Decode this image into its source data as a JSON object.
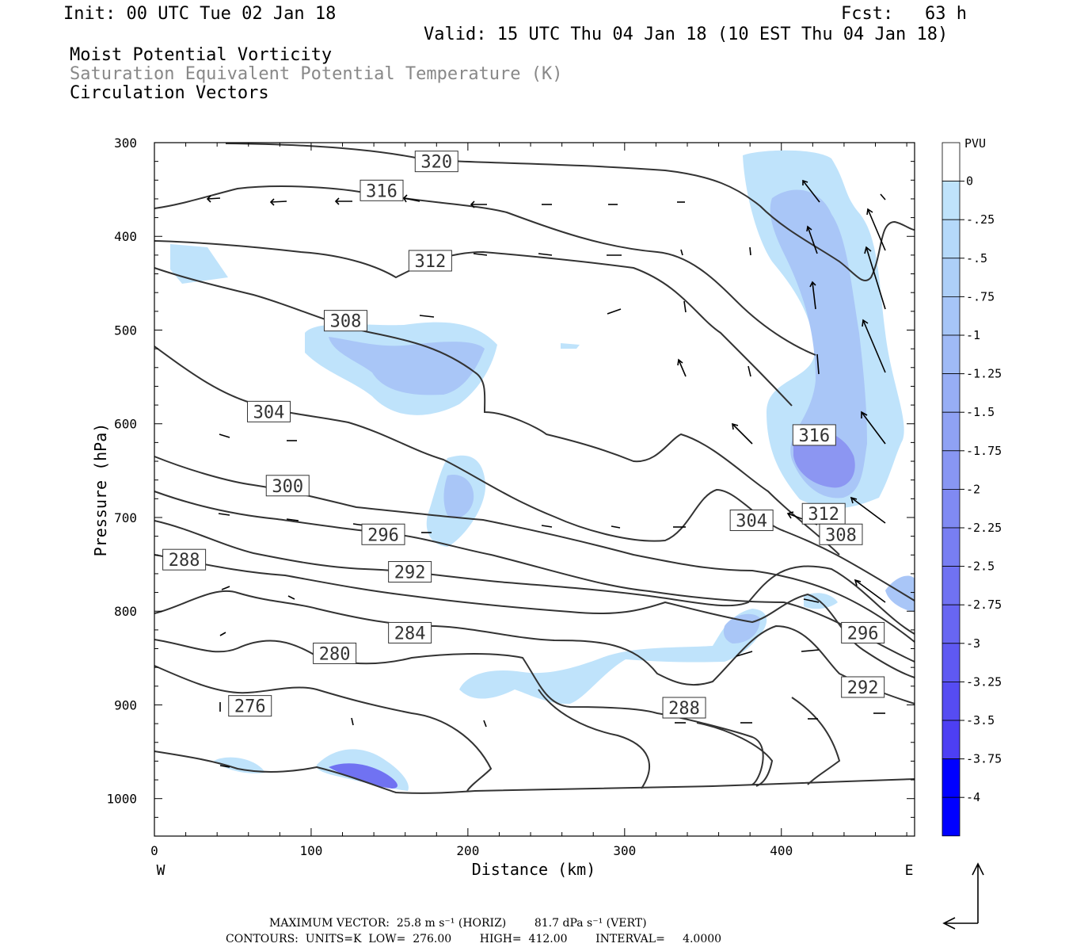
{
  "header": {
    "init": "Init: 00 UTC Tue 02 Jan 18",
    "fcst": "Fcst:   63 h",
    "valid": "Valid: 15 UTC Thu 04 Jan 18 (10 EST Thu 04 Jan 18)",
    "field1": "Moist Potential Vorticity",
    "field2": "Saturation Equivalent Potential Temperature (K)",
    "field3": "Circulation Vectors"
  },
  "footer": {
    "max_vector": "MAXIMUM VECTOR:  25.8 m s⁻¹ (HORIZ)        81.7 dPa s⁻¹ (VERT)",
    "contours": "CONTOURS:  UNITS=K  LOW=  276.00        HIGH=  412.00        INTERVAL=     4.0000"
  },
  "colors": {
    "mpv_light": "#bfe3fb",
    "mpv_mid": "#a9c6f7",
    "mpv_strong": "#8c96f2",
    "mpv_deep": "#4a4ff0",
    "contour": "#333333"
  },
  "chart_data": {
    "type": "cross-section",
    "xlabel": "Distance (km)",
    "ylabel": "Pressure (hPa)",
    "xlim": [
      0,
      485
    ],
    "ylim": [
      1040,
      300
    ],
    "x_ticks": [
      "0",
      "100",
      "200",
      "300",
      "400"
    ],
    "y_ticks": [
      "300",
      "400",
      "500",
      "600",
      "700",
      "800",
      "900",
      "1000"
    ],
    "x_end_labels": {
      "left": "W",
      "right": "E"
    },
    "colorbar": {
      "unit": "PVU",
      "labels": [
        "0",
        "-.25",
        "-.5",
        "-.75",
        "-1",
        "-1.25",
        "-1.5",
        "-1.75",
        "-2",
        "-2.25",
        "-2.5",
        "-2.75",
        "-3",
        "-3.25",
        "-3.5",
        "-3.75",
        "-4"
      ],
      "colors": [
        "#ffffff",
        "#bfe3fb",
        "#b5d9fa",
        "#adcff8",
        "#a6c5f7",
        "#9fbaf6",
        "#97aef5",
        "#8fa2f4",
        "#8896f3",
        "#808af3",
        "#787ef2",
        "#7072f2",
        "#6866f2",
        "#5f59f2",
        "#564cf2",
        "#4d3ff3",
        "#0000ff"
      ]
    },
    "contour_labels": [
      {
        "label": "320",
        "x": 180,
        "p": 320
      },
      {
        "label": "316",
        "x": 145,
        "p": 351
      },
      {
        "label": "312",
        "x": 176,
        "p": 426
      },
      {
        "label": "308",
        "x": 122,
        "p": 490
      },
      {
        "label": "304",
        "x": 73,
        "p": 587
      },
      {
        "label": "300",
        "x": 85,
        "p": 666
      },
      {
        "label": "296",
        "x": 146,
        "p": 718
      },
      {
        "label": "292",
        "x": 163,
        "p": 758
      },
      {
        "label": "288",
        "x": 19,
        "p": 745
      },
      {
        "label": "284",
        "x": 163,
        "p": 823
      },
      {
        "label": "280",
        "x": 115,
        "p": 845
      },
      {
        "label": "276",
        "x": 61,
        "p": 901
      },
      {
        "label": "316",
        "x": 421,
        "p": 612
      },
      {
        "label": "312",
        "x": 427,
        "p": 696
      },
      {
        "label": "304",
        "x": 381,
        "p": 703
      },
      {
        "label": "308",
        "x": 438,
        "p": 718
      },
      {
        "label": "296",
        "x": 452,
        "p": 823
      },
      {
        "label": "292",
        "x": 452,
        "p": 881
      },
      {
        "label": "288",
        "x": 338,
        "p": 903
      }
    ]
  }
}
